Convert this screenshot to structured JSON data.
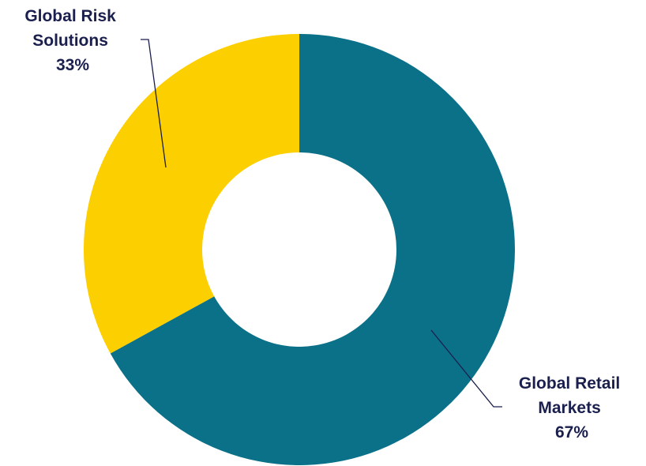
{
  "chart_data": {
    "type": "pie",
    "variant": "donut",
    "slices": [
      {
        "name": "Global Retail Markets",
        "label_lines": [
          "Global Retail",
          "Markets"
        ],
        "value": 67,
        "value_label": "67%",
        "color": "#0b7189"
      },
      {
        "name": "Global Risk Solutions",
        "label_lines": [
          "Global Risk",
          "Solutions"
        ],
        "value": 33,
        "value_label": "33%",
        "color": "#fccf00"
      }
    ],
    "legend": "none",
    "data_labels": "outside with leader lines"
  }
}
